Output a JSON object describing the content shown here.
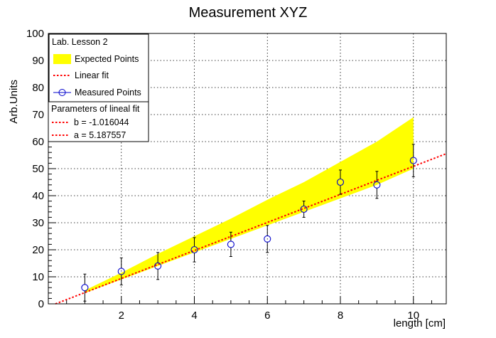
{
  "chart_data": {
    "type": "line",
    "title": "Measurement XYZ",
    "xlabel": "length [cm]",
    "ylabel": "Arb.Units",
    "xlim": [
      0,
      10.9
    ],
    "ylim": [
      0,
      100
    ],
    "x_ticks": [
      2,
      4,
      6,
      8,
      10
    ],
    "y_ticks": [
      0,
      10,
      20,
      30,
      40,
      50,
      60,
      70,
      80,
      90,
      100
    ],
    "grid": true,
    "colors": {
      "band": "#ffff00",
      "fit": "#ff0000",
      "points": "#0000cc",
      "errors": "#000000"
    },
    "expected_band": {
      "x": [
        1,
        2,
        3,
        4,
        5,
        6,
        7,
        8,
        9,
        10
      ],
      "low": [
        4,
        9,
        14,
        19,
        24,
        29,
        34,
        39,
        44,
        50
      ],
      "high": [
        5,
        11.5,
        18.5,
        25,
        31.5,
        38.5,
        45,
        52.5,
        60,
        69
      ]
    },
    "linear_fit": {
      "a": 5.187557,
      "b": -1.016044,
      "x_range": [
        0,
        10.9
      ]
    },
    "measured": {
      "x": [
        1,
        2,
        3,
        4,
        5,
        6,
        7,
        8,
        9,
        10
      ],
      "y": [
        6,
        12,
        14,
        20,
        22,
        24,
        35,
        45,
        44,
        53
      ],
      "err": [
        5,
        5,
        5,
        4.5,
        4.5,
        5,
        3,
        4.5,
        5,
        6
      ]
    },
    "legend": {
      "header": "Lab. Lesson 2",
      "entries": [
        "Expected Points",
        "Linear fit",
        "Measured Points"
      ],
      "placement": "top-left"
    },
    "fit_box": {
      "header": "Parameters of lineal fit",
      "entries": [
        "b = -1.016044",
        "a = 5.187557"
      ]
    }
  }
}
